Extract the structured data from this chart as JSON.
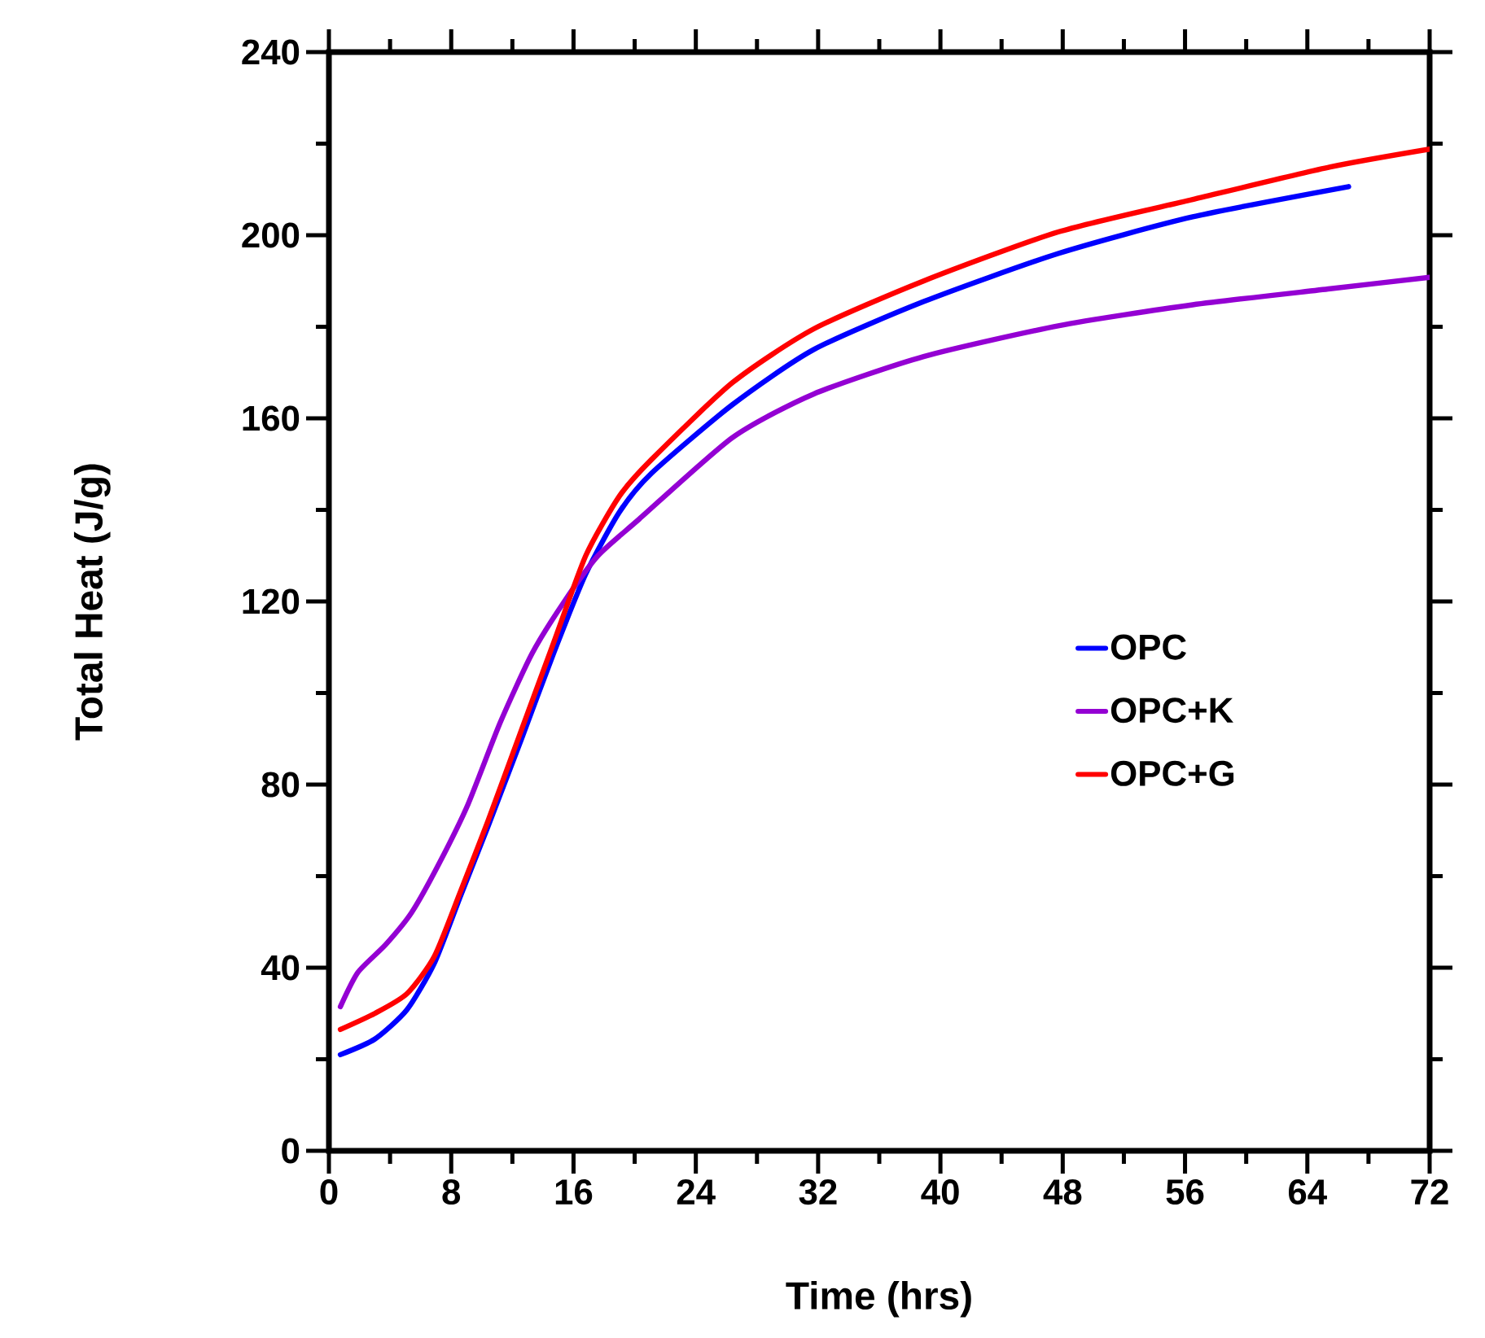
{
  "chart_data": {
    "type": "line",
    "xlabel": "Time (hrs)",
    "ylabel": "Total Heat (J/g)",
    "xlim": [
      0,
      72
    ],
    "ylim": [
      0,
      240
    ],
    "xticks": [
      0,
      8,
      16,
      24,
      32,
      40,
      48,
      56,
      64,
      72
    ],
    "yticks": [
      0,
      40,
      80,
      120,
      160,
      200,
      240
    ],
    "legend": "right",
    "series": [
      {
        "name": "OPC",
        "color": "#0000ff",
        "x": [
          0.75,
          3.0,
          5.1,
          6.9,
          8.6,
          10.4,
          12.6,
          14.7,
          16.8,
          19.0,
          21.1,
          26.4,
          31.7,
          38.9,
          47.7,
          56.5,
          66.7
        ],
        "values": [
          21,
          24.4,
          30.8,
          41,
          55.6,
          70.8,
          90,
          108.7,
          126,
          139.5,
          148,
          163,
          175,
          185.5,
          196,
          204,
          210.6
        ]
      },
      {
        "name": "OPC+K",
        "color": "#9400d3",
        "x": [
          0.75,
          1.9,
          3.7,
          5.4,
          7.2,
          9.1,
          11.2,
          13.3,
          15.4,
          17.6,
          20.3,
          26.4,
          31.7,
          38.9,
          47.7,
          56.5,
          65.5,
          72
        ],
        "values": [
          31.5,
          39,
          45,
          52,
          62.7,
          75.7,
          93.5,
          108.7,
          120,
          130,
          138,
          155.8,
          165.3,
          173.5,
          180.2,
          184.8,
          188.3,
          190.8
        ]
      },
      {
        "name": "OPC+G",
        "color": "#ff0000",
        "x": [
          0.75,
          3.0,
          5.1,
          6.9,
          8.6,
          10.4,
          12.6,
          14.7,
          16.8,
          19.0,
          21.1,
          26.4,
          31.7,
          38.9,
          47.7,
          56.5,
          65.5,
          72
        ],
        "values": [
          26.5,
          30,
          34.3,
          42.5,
          56.6,
          72,
          92,
          111,
          130,
          143,
          151,
          167.8,
          179.5,
          190,
          200.7,
          207.8,
          214.9,
          218.8
        ]
      }
    ]
  }
}
